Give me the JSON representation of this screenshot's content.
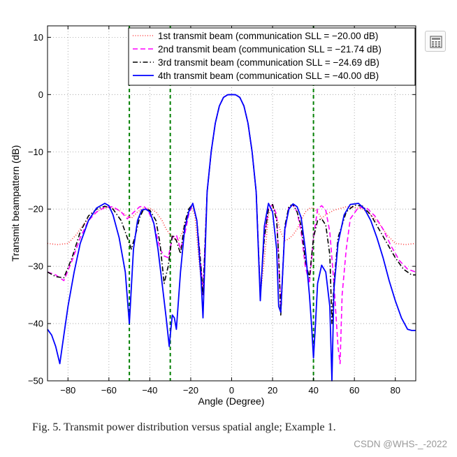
{
  "caption": "Fig. 5.   Transmit power distribution versus spatial angle; Example 1.",
  "watermark": "CSDN @WHS-_-2022",
  "toolbar": {
    "icon": "table-calculator-icon"
  },
  "chart_data": {
    "type": "line",
    "xlabel": "Angle (Degree)",
    "ylabel": "Transmit beampattern (dB)",
    "xlim": [
      -90,
      90
    ],
    "ylim": [
      -50,
      12
    ],
    "xticks": [
      -80,
      -60,
      -40,
      -20,
      0,
      20,
      40,
      60,
      80
    ],
    "yticks": [
      10,
      0,
      -10,
      -20,
      -30,
      -40,
      -50
    ],
    "xtick_labels": [
      "−80",
      "−60",
      "−40",
      "−20",
      "0",
      "20",
      "40",
      "60",
      "80"
    ],
    "ytick_labels": [
      "10",
      "0",
      "−10",
      "−20",
      "−30",
      "−40",
      "−50"
    ],
    "grid": true,
    "legend_position": "top-right",
    "vertical_lines": {
      "x": [
        -50,
        -30,
        40
      ],
      "color": "#008000",
      "style": "dashed"
    },
    "series": [
      {
        "name": "1st transmit beam (communication SLL = −20.00 dB)",
        "color": "#ff3b3b",
        "style": "dotted",
        "x": [
          -90,
          -85,
          -80,
          -76,
          -72,
          -68,
          -64,
          -60,
          -56,
          -52,
          -49,
          -46,
          -43,
          -40,
          -37,
          -34,
          -32,
          -30,
          -28,
          -26,
          -24,
          -22,
          -20,
          -18,
          -16,
          -14,
          -12,
          -10,
          -8,
          -6,
          -4,
          -2,
          0,
          2,
          4,
          6,
          8,
          10,
          12,
          14,
          16,
          18,
          20,
          22,
          24,
          26,
          28,
          30,
          32,
          34,
          36,
          38,
          40,
          42,
          44,
          46,
          48,
          50,
          53,
          56,
          60,
          64,
          68,
          72,
          76,
          80,
          85,
          90
        ],
        "y": [
          -26,
          -26.2,
          -26,
          -24.5,
          -22.5,
          -21,
          -20,
          -19.7,
          -20,
          -21,
          -21.6,
          -20.5,
          -19.8,
          -19.9,
          -20.5,
          -22,
          -23.5,
          -24.5,
          -25.2,
          -25.5,
          -24,
          -21.5,
          -19.5,
          -21,
          -29,
          -35,
          -17,
          -10,
          -5,
          -2,
          -0.5,
          -0.05,
          0,
          -0.05,
          -0.5,
          -2,
          -5,
          -10,
          -17,
          -35,
          -29,
          -21,
          -19.5,
          -21.5,
          -24,
          -25.5,
          -25.2,
          -24.5,
          -23.5,
          -22,
          -20.5,
          -19.9,
          -19.8,
          -20.5,
          -21.6,
          -21,
          -20.6,
          -20.2,
          -19.9,
          -19.6,
          -19.7,
          -20,
          -21,
          -22.5,
          -24.5,
          -26,
          -26.2,
          -26
        ]
      },
      {
        "name": "2nd transmit beam (communication SLL = −21.74 dB)",
        "color": "#ff00ff",
        "style": "dashed",
        "x": [
          -90,
          -86,
          -82,
          -78,
          -74,
          -70,
          -66,
          -62,
          -58,
          -54,
          -51,
          -48,
          -45,
          -43,
          -41,
          -38,
          -35,
          -33,
          -31,
          -29,
          -27,
          -25,
          -23,
          -21,
          -19,
          -17,
          -15,
          -14,
          -12,
          -10,
          -8,
          -6,
          -4,
          -2,
          0,
          2,
          4,
          6,
          8,
          10,
          12,
          14,
          16,
          18,
          20,
          22,
          24,
          26,
          28,
          30,
          32,
          34,
          36,
          38,
          40,
          42,
          44,
          46,
          48,
          50,
          52,
          53,
          54,
          56,
          58,
          62,
          66,
          70,
          74,
          78,
          82,
          86,
          90
        ],
        "y": [
          -31,
          -31.5,
          -32.5,
          -29,
          -25,
          -22,
          -20.5,
          -19.7,
          -19.6,
          -20.5,
          -21.7,
          -20.6,
          -19.6,
          -19.5,
          -20.2,
          -22.5,
          -27,
          -28.2,
          -28.5,
          -25,
          -24.5,
          -27,
          -24.5,
          -21,
          -19,
          -22,
          -30,
          -35,
          -17,
          -10,
          -5,
          -2,
          -0.5,
          -0.05,
          0,
          -0.05,
          -0.5,
          -2,
          -5,
          -10,
          -17,
          -35,
          -25,
          -20,
          -19.2,
          -21,
          -37,
          -24,
          -19.5,
          -19.3,
          -20.5,
          -24,
          -30,
          -33,
          -25,
          -20,
          -19.4,
          -20.2,
          -24,
          -33,
          -44,
          -47,
          -35,
          -27,
          -21.7,
          -19.7,
          -19.8,
          -21.2,
          -23.5,
          -26.5,
          -29,
          -30.5,
          -31
        ]
      },
      {
        "name": "3rd transmit beam (communication SLL = −24.69 dB)",
        "color": "#000000",
        "style": "dashdot",
        "x": [
          -90,
          -86,
          -82,
          -78,
          -74,
          -70,
          -66,
          -62,
          -58,
          -54,
          -51,
          -49,
          -47,
          -45,
          -43,
          -40,
          -37,
          -35,
          -33,
          -31,
          -29,
          -27,
          -25,
          -23,
          -21,
          -19,
          -17,
          -15,
          -14,
          -12,
          -10,
          -8,
          -6,
          -4,
          -2,
          0,
          2,
          4,
          6,
          8,
          10,
          12,
          14,
          16,
          18,
          20,
          22,
          23,
          24,
          26,
          28,
          30,
          32,
          34,
          36,
          38,
          40,
          42,
          44,
          46,
          48,
          49,
          50,
          52,
          56,
          60,
          64,
          68,
          72,
          76,
          80,
          84,
          88,
          90
        ],
        "y": [
          -31,
          -31.8,
          -32,
          -28.5,
          -24,
          -21.2,
          -20,
          -19.5,
          -20,
          -22,
          -25,
          -27,
          -24.5,
          -21.5,
          -20,
          -20.2,
          -22,
          -26,
          -33,
          -30,
          -24.5,
          -25.5,
          -27.8,
          -22.5,
          -20,
          -19.1,
          -22,
          -30,
          -35,
          -17,
          -10,
          -5,
          -2,
          -0.5,
          -0.05,
          0,
          -0.05,
          -0.5,
          -2,
          -5,
          -10,
          -17,
          -35,
          -25,
          -20,
          -19.2,
          -22,
          -28,
          -38.5,
          -23,
          -19.5,
          -19.2,
          -20.5,
          -23,
          -29,
          -32,
          -25,
          -22,
          -21.7,
          -22.8,
          -28,
          -40,
          -33,
          -25,
          -20.5,
          -19.3,
          -19.5,
          -21,
          -23.5,
          -26,
          -28.5,
          -30.5,
          -31.5,
          -31.5
        ]
      },
      {
        "name": "4th transmit beam (communication SLL = −40.00 dB)",
        "color": "#0000ff",
        "style": "solid",
        "x": [
          -90,
          -88,
          -86,
          -84,
          -82,
          -80,
          -77,
          -74,
          -70,
          -66,
          -62,
          -60,
          -58,
          -55,
          -52,
          -50,
          -48,
          -46,
          -44,
          -42,
          -40,
          -38,
          -36,
          -34,
          -32,
          -30.5,
          -30,
          -29,
          -28,
          -27,
          -25,
          -23,
          -21,
          -19,
          -17,
          -15,
          -14,
          -12,
          -10,
          -8,
          -6,
          -4,
          -2,
          0,
          2,
          4,
          6,
          8,
          10,
          12,
          14,
          16,
          18,
          20,
          22,
          23,
          24,
          26,
          28,
          30,
          32,
          34,
          36,
          38,
          39,
          40,
          41,
          42,
          44,
          46,
          48,
          49,
          50,
          52,
          55,
          58,
          62,
          65,
          68,
          71,
          74,
          77,
          80,
          83,
          86,
          88,
          90
        ],
        "y": [
          -41,
          -42,
          -44,
          -47,
          -42,
          -37,
          -31,
          -26,
          -22,
          -19.8,
          -19,
          -19.4,
          -21,
          -25,
          -31,
          -40,
          -27,
          -22,
          -20.2,
          -20,
          -20.5,
          -22.5,
          -27,
          -33,
          -39,
          -44,
          -42,
          -38.5,
          -39,
          -41,
          -31,
          -23.5,
          -20.5,
          -19,
          -22,
          -32,
          -39,
          -17,
          -10,
          -5,
          -2,
          -0.5,
          -0.05,
          0,
          -0.05,
          -0.5,
          -2,
          -5,
          -10,
          -17,
          -36,
          -23,
          -19,
          -20.5,
          -27,
          -37,
          -38,
          -23.5,
          -20,
          -19.1,
          -19.6,
          -21.5,
          -27,
          -35,
          -40,
          -46,
          -40,
          -33,
          -29.8,
          -31,
          -37,
          -50,
          -34,
          -26,
          -21,
          -19.2,
          -19,
          -20,
          -22,
          -25,
          -28.5,
          -32.5,
          -36,
          -39,
          -41,
          -41.2,
          -41.2
        ]
      }
    ]
  }
}
